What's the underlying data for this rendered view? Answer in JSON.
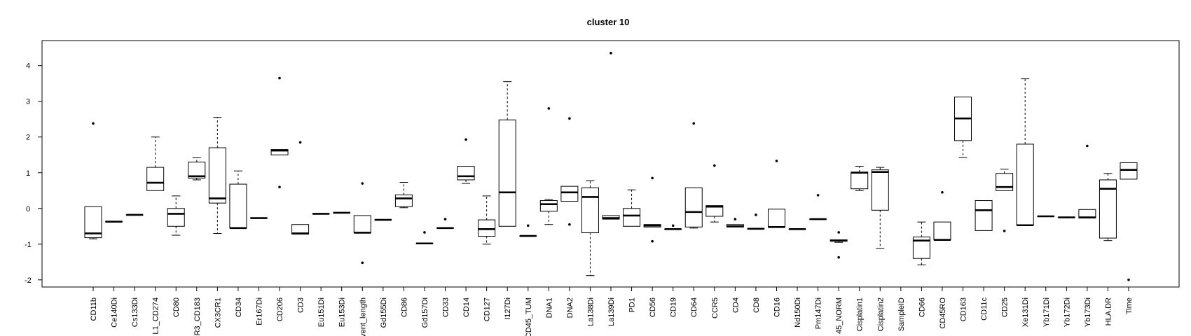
{
  "chart_data": {
    "type": "boxplot",
    "title": "cluster 10",
    "xlabel": "",
    "ylabel": "",
    "ylim": [
      -2.2,
      4.7
    ],
    "yticks": [
      -2,
      -1,
      0,
      1,
      2,
      3,
      4
    ],
    "grid": false,
    "categories": [
      "CD11b",
      "Ce140Di",
      "Cs133Di",
      "L1_CD274",
      "CD80",
      "R3_CD183",
      "CX3CR1",
      "CD34",
      "Er167Di",
      "CD206",
      "CD3",
      "Eu151Di",
      "Eu153Di",
      "vent_length",
      "Gd155Di",
      "CD86",
      "Gd157Di",
      "CD33",
      "CD14",
      "CD127",
      "I127Di",
      "CD45_TUM",
      "DNA1",
      "DNA2",
      "La138Di",
      "La139Di",
      "PD1",
      "CD56",
      "CD19",
      "CD64",
      "CCR5",
      "CD4",
      "CD8",
      "CD16",
      "Nd150Di",
      "Pm147Di",
      "45_NORM",
      "Cisplatin1",
      "Cisplatin2",
      "SampleID",
      "CD66",
      "CD45RO",
      "CD163",
      "CD11c",
      "CD25",
      "Xe131Di",
      "Yb171Di",
      "Yb172Di",
      "Yb173Di",
      "HLA.DR",
      "Time"
    ],
    "boxes": [
      {
        "min": -0.85,
        "q1": -0.82,
        "median": -0.7,
        "q3": 0.05,
        "max": 0.05,
        "outliers": [
          2.38
        ]
      },
      {
        "min": -0.37,
        "q1": -0.37,
        "median": -0.37,
        "q3": -0.37,
        "max": -0.37,
        "outliers": []
      },
      {
        "min": -0.18,
        "q1": -0.18,
        "median": -0.18,
        "q3": -0.18,
        "max": -0.18,
        "outliers": []
      },
      {
        "min": 0.5,
        "q1": 0.5,
        "median": 0.72,
        "q3": 1.15,
        "max": 2.0,
        "outliers": []
      },
      {
        "min": -0.75,
        "q1": -0.5,
        "median": -0.15,
        "q3": 0.0,
        "max": 0.35,
        "outliers": []
      },
      {
        "min": 0.8,
        "q1": 0.85,
        "median": 0.9,
        "q3": 1.3,
        "max": 1.42,
        "outliers": []
      },
      {
        "min": -0.7,
        "q1": 0.15,
        "median": 0.28,
        "q3": 1.7,
        "max": 2.55,
        "outliers": []
      },
      {
        "min": -0.55,
        "q1": -0.55,
        "median": -0.55,
        "q3": 0.68,
        "max": 1.05,
        "outliers": []
      },
      {
        "min": -0.27,
        "q1": -0.27,
        "median": -0.27,
        "q3": -0.27,
        "max": -0.27,
        "outliers": []
      },
      {
        "min": 1.5,
        "q1": 1.5,
        "median": 1.62,
        "q3": 1.65,
        "max": 1.65,
        "outliers": [
          3.65,
          0.6
        ]
      },
      {
        "min": -0.72,
        "q1": -0.72,
        "median": -0.7,
        "q3": -0.45,
        "max": -0.45,
        "outliers": [
          1.85
        ]
      },
      {
        "min": -0.15,
        "q1": -0.15,
        "median": -0.15,
        "q3": -0.15,
        "max": -0.15,
        "outliers": []
      },
      {
        "min": -0.12,
        "q1": -0.12,
        "median": -0.12,
        "q3": -0.12,
        "max": -0.12,
        "outliers": []
      },
      {
        "min": -0.68,
        "q1": -0.68,
        "median": -0.68,
        "q3": -0.2,
        "max": -0.2,
        "outliers": [
          0.7,
          -1.52
        ]
      },
      {
        "min": -0.32,
        "q1": -0.32,
        "median": -0.32,
        "q3": -0.32,
        "max": -0.32,
        "outliers": []
      },
      {
        "min": 0.02,
        "q1": 0.05,
        "median": 0.28,
        "q3": 0.38,
        "max": 0.73,
        "outliers": []
      },
      {
        "min": -0.98,
        "q1": -0.98,
        "median": -0.98,
        "q3": -0.98,
        "max": -0.98,
        "outliers": [
          -0.67
        ]
      },
      {
        "min": -0.55,
        "q1": -0.55,
        "median": -0.55,
        "q3": -0.55,
        "max": -0.55,
        "outliers": [
          -0.3
        ]
      },
      {
        "min": 0.7,
        "q1": 0.8,
        "median": 0.9,
        "q3": 1.18,
        "max": 1.18,
        "outliers": [
          1.93
        ]
      },
      {
        "min": -1.0,
        "q1": -0.78,
        "median": -0.58,
        "q3": -0.32,
        "max": 0.35,
        "outliers": []
      },
      {
        "min": -0.5,
        "q1": -0.5,
        "median": 0.45,
        "q3": 2.48,
        "max": 3.55,
        "outliers": []
      },
      {
        "min": -0.77,
        "q1": -0.77,
        "median": -0.77,
        "q3": -0.77,
        "max": -0.77,
        "outliers": [
          -0.48
        ]
      },
      {
        "min": -0.45,
        "q1": -0.08,
        "median": 0.12,
        "q3": 0.22,
        "max": 0.25,
        "outliers": [
          2.8
        ]
      },
      {
        "min": 0.2,
        "q1": 0.2,
        "median": 0.45,
        "q3": 0.62,
        "max": 0.62,
        "outliers": [
          2.52,
          -0.45
        ]
      },
      {
        "min": -1.88,
        "q1": -0.68,
        "median": 0.32,
        "q3": 0.58,
        "max": 0.78,
        "outliers": []
      },
      {
        "min": -0.3,
        "q1": -0.3,
        "median": -0.27,
        "q3": -0.2,
        "max": -0.2,
        "outliers": [
          4.35
        ]
      },
      {
        "min": -0.5,
        "q1": -0.5,
        "median": -0.2,
        "q3": 0.0,
        "max": 0.52,
        "outliers": []
      },
      {
        "min": -0.52,
        "q1": -0.52,
        "median": -0.48,
        "q3": -0.45,
        "max": -0.45,
        "outliers": [
          0.85,
          -0.92
        ]
      },
      {
        "min": -0.58,
        "q1": -0.58,
        "median": -0.58,
        "q3": -0.58,
        "max": -0.58,
        "outliers": [
          -0.48
        ]
      },
      {
        "min": -0.55,
        "q1": -0.52,
        "median": -0.1,
        "q3": 0.58,
        "max": 0.58,
        "outliers": [
          2.38
        ]
      },
      {
        "min": -0.38,
        "q1": -0.22,
        "median": 0.05,
        "q3": 0.08,
        "max": 0.08,
        "outliers": [
          1.2
        ]
      },
      {
        "min": -0.52,
        "q1": -0.52,
        "median": -0.5,
        "q3": -0.45,
        "max": -0.45,
        "outliers": [
          -0.3
        ]
      },
      {
        "min": -0.57,
        "q1": -0.57,
        "median": -0.57,
        "q3": -0.57,
        "max": -0.57,
        "outliers": [
          -0.18
        ]
      },
      {
        "min": -0.52,
        "q1": -0.52,
        "median": -0.52,
        "q3": -0.02,
        "max": -0.02,
        "outliers": [
          1.33
        ]
      },
      {
        "min": -0.58,
        "q1": -0.58,
        "median": -0.58,
        "q3": -0.58,
        "max": -0.58,
        "outliers": []
      },
      {
        "min": -0.3,
        "q1": -0.3,
        "median": -0.3,
        "q3": -0.3,
        "max": -0.3,
        "outliers": [
          0.37
        ]
      },
      {
        "min": -0.95,
        "q1": -0.92,
        "median": -0.9,
        "q3": -0.88,
        "max": -0.88,
        "outliers": [
          -0.67,
          -1.37
        ]
      },
      {
        "min": 0.5,
        "q1": 0.55,
        "median": 1.0,
        "q3": 1.02,
        "max": 1.18,
        "outliers": []
      },
      {
        "min": -1.12,
        "q1": -0.05,
        "median": 1.02,
        "q3": 1.08,
        "max": 1.15,
        "outliers": []
      },
      {
        "min": null,
        "q1": null,
        "median": null,
        "q3": null,
        "max": null,
        "outliers": []
      },
      {
        "min": -1.58,
        "q1": -1.4,
        "median": -0.9,
        "q3": -0.8,
        "max": -0.38,
        "outliers": []
      },
      {
        "min": -0.88,
        "q1": -0.88,
        "median": -0.88,
        "q3": -0.38,
        "max": -0.38,
        "outliers": [
          0.45
        ]
      },
      {
        "min": 1.43,
        "q1": 1.9,
        "median": 2.52,
        "q3": 3.12,
        "max": 3.12,
        "outliers": []
      },
      {
        "min": -0.62,
        "q1": -0.62,
        "median": -0.05,
        "q3": 0.22,
        "max": 0.22,
        "outliers": []
      },
      {
        "min": 0.5,
        "q1": 0.5,
        "median": 0.6,
        "q3": 0.98,
        "max": 1.1,
        "outliers": [
          -0.63
        ]
      },
      {
        "min": -0.47,
        "q1": -0.47,
        "median": -0.47,
        "q3": 1.8,
        "max": 3.63,
        "outliers": []
      },
      {
        "min": -0.22,
        "q1": -0.22,
        "median": -0.22,
        "q3": -0.22,
        "max": -0.22,
        "outliers": []
      },
      {
        "min": -0.25,
        "q1": -0.25,
        "median": -0.25,
        "q3": -0.25,
        "max": -0.25,
        "outliers": []
      },
      {
        "min": -0.27,
        "q1": -0.27,
        "median": -0.25,
        "q3": -0.03,
        "max": -0.03,
        "outliers": [
          1.75
        ]
      },
      {
        "min": -0.9,
        "q1": -0.83,
        "median": 0.55,
        "q3": 0.8,
        "max": 0.98,
        "outliers": []
      },
      {
        "min": 0.82,
        "q1": 0.82,
        "median": 1.08,
        "q3": 1.28,
        "max": 1.28,
        "outliers": [
          -2.0
        ]
      }
    ]
  }
}
